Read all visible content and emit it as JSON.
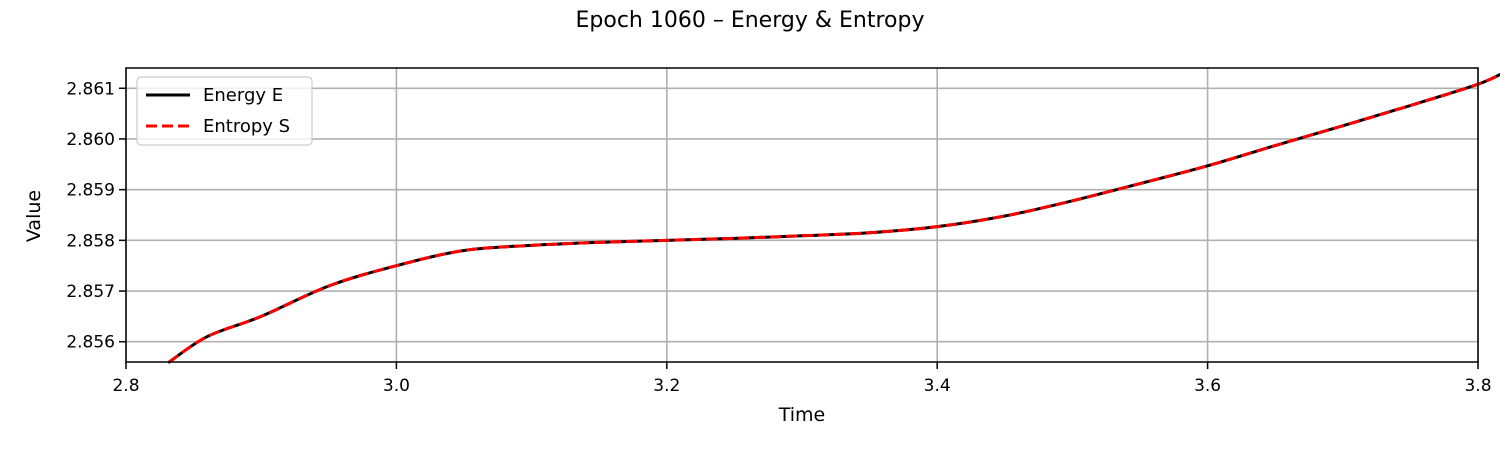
{
  "chart_data": {
    "type": "line",
    "title": "Epoch 1060 – Energy & Entropy",
    "xlabel": "Time",
    "ylabel": "Value",
    "xlim": [
      2.8,
      3.8
    ],
    "ylim": [
      2.8556,
      2.8614
    ],
    "x_ticks": [
      2.8,
      3.0,
      3.2,
      3.4,
      3.6,
      3.8
    ],
    "x_tick_labels": [
      "2.8",
      "3.0",
      "3.2",
      "3.4",
      "3.6",
      "3.8"
    ],
    "y_ticks": [
      2.856,
      2.857,
      2.858,
      2.859,
      2.86,
      2.861
    ],
    "y_tick_labels": [
      "2.856",
      "2.857",
      "2.858",
      "2.859",
      "2.860",
      "2.861"
    ],
    "grid": true,
    "legend_position": "top-left",
    "series": [
      {
        "name": "Energy E",
        "color": "#000000",
        "style": "solid",
        "x": [
          2.832,
          2.86,
          2.9,
          2.95,
          3.0,
          3.05,
          3.1,
          3.15,
          3.2,
          3.25,
          3.3,
          3.35,
          3.4,
          3.45,
          3.5,
          3.55,
          3.6,
          3.65,
          3.7,
          3.75,
          3.8,
          3.822
        ],
        "y": [
          2.8556,
          2.8561,
          2.8565,
          2.8571,
          2.8575,
          2.8578,
          2.8579,
          2.85796,
          2.858,
          2.85804,
          2.85809,
          2.85815,
          2.85827,
          2.85848,
          2.85878,
          2.85912,
          2.85947,
          2.85987,
          2.86026,
          2.86066,
          2.86108,
          2.86135
        ]
      },
      {
        "name": "Entropy S",
        "color": "#ff0000",
        "style": "dashed",
        "x": [
          2.832,
          2.86,
          2.9,
          2.95,
          3.0,
          3.05,
          3.1,
          3.15,
          3.2,
          3.25,
          3.3,
          3.35,
          3.4,
          3.45,
          3.5,
          3.55,
          3.6,
          3.65,
          3.7,
          3.75,
          3.8,
          3.822
        ],
        "y": [
          2.8556,
          2.8561,
          2.8565,
          2.8571,
          2.8575,
          2.8578,
          2.8579,
          2.85796,
          2.858,
          2.85804,
          2.85809,
          2.85815,
          2.85827,
          2.85848,
          2.85878,
          2.85912,
          2.85947,
          2.85987,
          2.86026,
          2.86066,
          2.86108,
          2.86135
        ]
      }
    ]
  }
}
